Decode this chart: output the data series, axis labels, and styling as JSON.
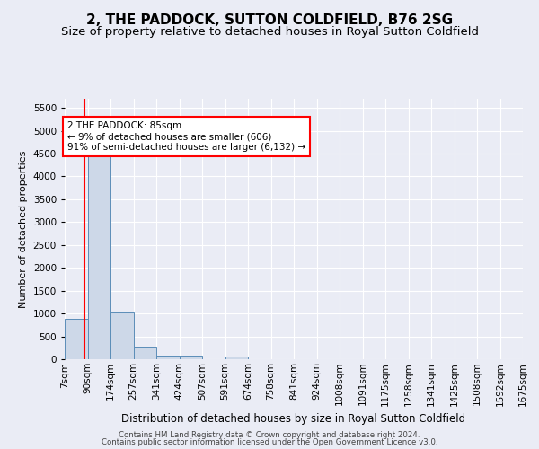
{
  "title": "2, THE PADDOCK, SUTTON COLDFIELD, B76 2SG",
  "subtitle": "Size of property relative to detached houses in Royal Sutton Coldfield",
  "xlabel": "Distribution of detached houses by size in Royal Sutton Coldfield",
  "ylabel": "Number of detached properties",
  "footer_line1": "Contains HM Land Registry data © Crown copyright and database right 2024.",
  "footer_line2": "Contains public sector information licensed under the Open Government Licence v3.0.",
  "bin_labels": [
    "7sqm",
    "90sqm",
    "174sqm",
    "257sqm",
    "341sqm",
    "424sqm",
    "507sqm",
    "591sqm",
    "674sqm",
    "758sqm",
    "841sqm",
    "924sqm",
    "1008sqm",
    "1091sqm",
    "1175sqm",
    "1258sqm",
    "1341sqm",
    "1425sqm",
    "1508sqm",
    "1592sqm",
    "1675sqm"
  ],
  "bar_values": [
    880,
    4500,
    1050,
    280,
    80,
    80,
    0,
    50,
    0,
    0,
    0,
    0,
    0,
    0,
    0,
    0,
    0,
    0,
    0,
    0
  ],
  "bar_color": "#cdd8e8",
  "bar_edge_color": "#5b8db8",
  "red_line_x": 0.88,
  "annotation_text_line1": "2 THE PADDOCK: 85sqm",
  "annotation_text_line2": "← 9% of detached houses are smaller (606)",
  "annotation_text_line3": "91% of semi-detached houses are larger (6,132) →",
  "ylim": [
    0,
    5700
  ],
  "yticks": [
    0,
    500,
    1000,
    1500,
    2000,
    2500,
    3000,
    3500,
    4000,
    4500,
    5000,
    5500
  ],
  "bg_color": "#eaecf5",
  "plot_bg_color": "#eaecf5",
  "grid_color": "#ffffff",
  "title_fontsize": 11,
  "subtitle_fontsize": 9.5,
  "axis_fontsize": 8,
  "tick_fontsize": 7.5
}
